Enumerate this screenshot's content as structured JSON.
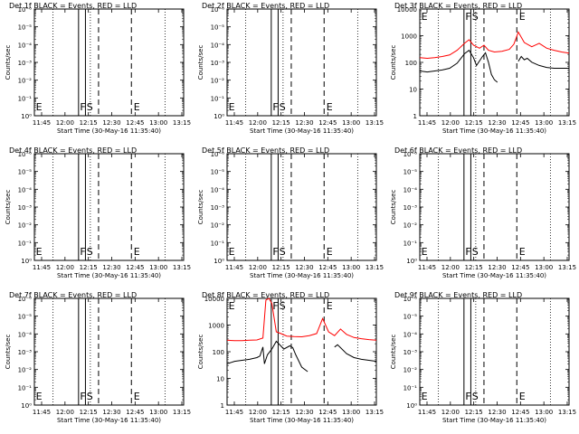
{
  "chart_data": [
    {
      "type": "line",
      "title": "Det 1f BLACK = Events, RED = LLD",
      "xlabel": "Start Time (30-May-16 11:35:40)",
      "ylabel": "Counts/sec",
      "xticks": [
        "11:45",
        "12:00",
        "12:15",
        "12:30",
        "12:45",
        "13:00",
        "13:15"
      ],
      "yticks": [
        "10⁰",
        "10⁻¹",
        "10⁻²",
        "10⁻³",
        "10⁻⁴",
        "10⁻⁵",
        "10⁻⁶"
      ],
      "markers": {
        "E1": "E",
        "F": "F",
        "S": "S",
        "E2": "E"
      },
      "series": []
    },
    {
      "type": "line",
      "title": "Det 2f BLACK = Events, RED = LLD",
      "xlabel": "Start Time (30-May-16 11:35:40)",
      "ylabel": "Counts/sec",
      "xticks": [
        "11:45",
        "12:00",
        "12:15",
        "12:30",
        "12:45",
        "13:00",
        "13:15"
      ],
      "yticks": [
        "10⁰",
        "10⁻¹",
        "10⁻²",
        "10⁻³",
        "10⁻⁴",
        "10⁻⁵",
        "10⁻⁶"
      ],
      "markers": {
        "E1": "E",
        "F": "F",
        "S": "S",
        "E2": "E"
      },
      "series": []
    },
    {
      "type": "line",
      "title": "Det 3f BLACK = Events, RED = LLD",
      "xlabel": "Start Time (30-May-16 11:35:40)",
      "ylabel": "Counts/sec",
      "xticks": [
        "11:45",
        "12:00",
        "12:15",
        "12:30",
        "12:45",
        "13:00",
        "13:15"
      ],
      "yticks": [
        "1",
        "10",
        "100",
        "1000",
        "10000"
      ],
      "log": true,
      "ylim": [
        1,
        14000
      ],
      "markers": {
        "E1": "E",
        "F": "F",
        "S": "S",
        "E2": "E"
      },
      "series": [
        {
          "color": "#ff0000",
          "x": [
            0,
            0.05,
            0.1,
            0.15,
            0.2,
            0.25,
            0.3,
            0.33,
            0.36,
            0.4,
            0.43,
            0.46,
            0.5,
            0.55,
            0.6,
            0.63,
            0.66,
            0.7,
            0.75,
            0.8,
            0.85,
            0.9,
            0.95,
            1.0
          ],
          "y": [
            180,
            170,
            180,
            200,
            230,
            350,
            650,
            900,
            550,
            420,
            550,
            350,
            300,
            320,
            380,
            600,
            1800,
            700,
            480,
            650,
            420,
            350,
            300,
            270
          ]
        },
        {
          "color": "#000000",
          "x": [
            0,
            0.05,
            0.1,
            0.15,
            0.2,
            0.25,
            0.3,
            0.33,
            0.36,
            0.38,
            0.42,
            0.44,
            0.46,
            0.48,
            0.5,
            0.52,
            0.65,
            0.66,
            0.68,
            0.7,
            0.72,
            0.75,
            0.8,
            0.85,
            0.9,
            0.95,
            1.0
          ],
          "y": [
            55,
            50,
            55,
            60,
            70,
            110,
            260,
            350,
            180,
            90,
            200,
            280,
            120,
            40,
            25,
            20,
            null,
            130,
            200,
            150,
            170,
            120,
            90,
            75,
            70,
            70,
            70
          ]
        }
      ]
    },
    {
      "type": "line",
      "title": "Det 4f BLACK = Events, RED = LLD",
      "xlabel": "Start Time (30-May-16 11:35:40)",
      "ylabel": "Counts/sec",
      "xticks": [
        "11:45",
        "12:00",
        "12:15",
        "12:30",
        "12:45",
        "13:00",
        "13:15"
      ],
      "yticks": [
        "10⁰",
        "10⁻¹",
        "10⁻²",
        "10⁻³",
        "10⁻⁴",
        "10⁻⁵",
        "10⁻⁶"
      ],
      "markers": {
        "E1": "E",
        "F": "F",
        "S": "S",
        "E2": "E"
      },
      "series": []
    },
    {
      "type": "line",
      "title": "Det 5f BLACK = Events, RED = LLD",
      "xlabel": "Start Time (30-May-16 11:35:40)",
      "ylabel": "Counts/sec",
      "xticks": [
        "11:45",
        "12:00",
        "12:15",
        "12:30",
        "12:45",
        "13:00",
        "13:15"
      ],
      "yticks": [
        "10⁰",
        "10⁻¹",
        "10⁻²",
        "10⁻³",
        "10⁻⁴",
        "10⁻⁵",
        "10⁻⁶"
      ],
      "markers": {
        "E1": "E",
        "F": "F",
        "S": "S",
        "E2": "E"
      },
      "series": []
    },
    {
      "type": "line",
      "title": "Det 6f BLACK = Events, RED = LLD",
      "xlabel": "Start Time (30-May-16 11:35:40)",
      "ylabel": "Counts/sec",
      "xticks": [
        "11:45",
        "12:00",
        "12:15",
        "12:30",
        "12:45",
        "13:00",
        "13:15"
      ],
      "yticks": [
        "10⁰",
        "10⁻¹",
        "10⁻²",
        "10⁻³",
        "10⁻⁴",
        "10⁻⁵",
        "10⁻⁶"
      ],
      "markers": {
        "E1": "E",
        "F": "F",
        "S": "S",
        "E2": "E"
      },
      "series": []
    },
    {
      "type": "line",
      "title": "Det 7f BLACK = Events, RED = LLD",
      "xlabel": "Start Time (30-May-16 11:35:40)",
      "ylabel": "Counts/sec",
      "xticks": [
        "11:45",
        "12:00",
        "12:15",
        "12:30",
        "12:45",
        "13:00",
        "13:15"
      ],
      "yticks": [
        "10⁰",
        "10⁻¹",
        "10⁻²",
        "10⁻³",
        "10⁻⁴",
        "10⁻⁵",
        "10⁻⁶"
      ],
      "markers": {
        "E1": "E",
        "F": "F",
        "S": "S",
        "E2": "E"
      },
      "series": []
    },
    {
      "type": "line",
      "title": "Det 8f BLACK = Events, RED = LLD",
      "xlabel": "Start Time (30-May-16 11:35:40)",
      "ylabel": "Counts/sec",
      "xticks": [
        "11:45",
        "12:00",
        "12:15",
        "12:30",
        "12:45",
        "13:00",
        "13:15"
      ],
      "yticks": [
        "1",
        "10",
        "100",
        "1000",
        "10000"
      ],
      "log": true,
      "ylim": [
        1,
        14000
      ],
      "markers": {
        "E1": "E",
        "F": "F",
        "S": "S",
        "E2": "E"
      },
      "series": [
        {
          "color": "#ff0000",
          "x": [
            0,
            0.05,
            0.1,
            0.15,
            0.2,
            0.24,
            0.26,
            0.28,
            0.3,
            0.33,
            0.36,
            0.4,
            0.45,
            0.5,
            0.55,
            0.6,
            0.64,
            0.68,
            0.72,
            0.76,
            0.8,
            0.85,
            0.9,
            0.95,
            1.0
          ],
          "y": [
            330,
            320,
            320,
            330,
            340,
            400,
            12000,
            14000,
            9000,
            700,
            600,
            480,
            460,
            450,
            500,
            600,
            2300,
            700,
            500,
            900,
            560,
            420,
            380,
            350,
            330
          ]
        },
        {
          "color": "#000000",
          "x": [
            0,
            0.05,
            0.1,
            0.15,
            0.2,
            0.22,
            0.24,
            0.25,
            0.27,
            0.3,
            0.33,
            0.36,
            0.38,
            0.42,
            0.44,
            0.46,
            0.5,
            0.54,
            0.7,
            0.72,
            0.74,
            0.76,
            0.8,
            0.85,
            0.9,
            0.95,
            1.0
          ],
          "y": [
            40,
            50,
            55,
            60,
            70,
            80,
            180,
            40,
            90,
            150,
            300,
            200,
            150,
            200,
            170,
            90,
            30,
            20,
            null,
            180,
            220,
            170,
            100,
            70,
            60,
            55,
            50
          ]
        }
      ]
    },
    {
      "type": "line",
      "title": "Det 9f BLACK = Events, RED = LLD",
      "xlabel": "Start Time (30-May-16 11:35:40)",
      "ylabel": "Counts/sec",
      "xticks": [
        "11:45",
        "12:00",
        "12:15",
        "12:30",
        "12:45",
        "13:00",
        "13:15"
      ],
      "yticks": [
        "10⁰",
        "10⁻¹",
        "10⁻²",
        "10⁻³",
        "10⁻⁴",
        "10⁻⁵",
        "10⁻⁶"
      ],
      "markers": {
        "E1": "E",
        "F": "F",
        "S": "S",
        "E2": "E"
      },
      "series": []
    }
  ]
}
